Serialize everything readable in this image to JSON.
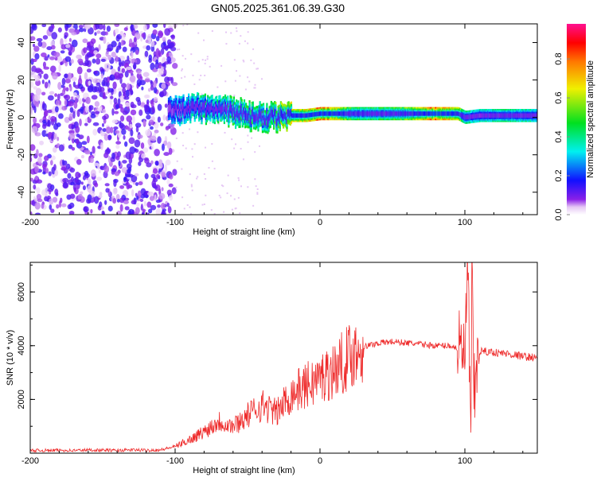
{
  "title": "GN05.2025.361.06.39.G30",
  "chart_data": [
    {
      "type": "heatmap",
      "xlabel": "Height of straight line (km)",
      "ylabel": "Frequency (Hz)",
      "xlim": [
        -200,
        150
      ],
      "ylim": [
        -52,
        50
      ],
      "xticks": [
        -200,
        -100,
        0,
        100
      ],
      "xtick_labels": [
        "-200",
        "-100",
        "0",
        "100"
      ],
      "yticks": [
        -40,
        -20,
        0,
        20,
        40
      ],
      "ytick_labels": [
        "-40",
        "-20",
        "0",
        "20",
        "40"
      ],
      "colorbar": {
        "label": "Normalized spectral amplitude",
        "range": [
          0,
          1
        ],
        "ticks": [
          0.0,
          0.2,
          0.4,
          0.6,
          0.8
        ],
        "tick_labels": [
          "0.0",
          "0.2",
          "0.4",
          "0.6",
          "0.8"
        ],
        "colormap": "rainbow (white-violet-blue-cyan-green-yellow-red-magenta)"
      },
      "ridge": {
        "x": [
          -105,
          -90,
          -80,
          -70,
          -60,
          -50,
          -40,
          -30,
          -20,
          -10,
          0,
          10,
          20,
          40,
          60,
          80,
          95,
          100,
          110,
          130,
          150
        ],
        "freq": [
          4,
          4,
          5,
          4,
          3,
          1,
          0,
          0,
          1,
          1,
          2,
          2,
          2,
          2,
          2,
          2,
          2,
          0,
          1,
          1,
          1
        ],
        "peak_amplitude": [
          0.3,
          0.4,
          0.45,
          0.45,
          0.5,
          0.55,
          0.5,
          0.6,
          0.7,
          0.75,
          0.85,
          0.8,
          0.55,
          0.5,
          0.6,
          0.9,
          0.7,
          0.45,
          0.4,
          0.45,
          0.4
        ]
      },
      "noise_region": {
        "x_range": [
          -200,
          -100
        ],
        "amplitude": 0.15
      }
    },
    {
      "type": "line",
      "xlabel": "Height of straight line (km)",
      "ylabel": "SNR (10 * v/v)",
      "xlim": [
        -200,
        150
      ],
      "ylim": [
        0,
        7100
      ],
      "xticks": [
        -200,
        -100,
        0,
        100
      ],
      "xtick_labels": [
        "-200",
        "-100",
        "0",
        "100"
      ],
      "yticks": [
        2000,
        4000,
        6000
      ],
      "ytick_labels": [
        "2000",
        "4000",
        "6000"
      ],
      "color": "#ee2a2a",
      "series": [
        {
          "name": "SNR",
          "x": [
            -200,
            -190,
            -180,
            -170,
            -160,
            -150,
            -140,
            -130,
            -120,
            -110,
            -100,
            -90,
            -80,
            -70,
            -60,
            -50,
            -40,
            -30,
            -20,
            -10,
            0,
            10,
            20,
            30,
            40,
            50,
            60,
            70,
            80,
            90,
            95,
            100,
            102,
            104,
            105,
            106,
            110,
            120,
            130,
            140,
            150
          ],
          "values": [
            100,
            100,
            110,
            100,
            120,
            110,
            100,
            120,
            110,
            120,
            250,
            500,
            800,
            1200,
            1000,
            1400,
            1800,
            1500,
            2200,
            2500,
            2800,
            3100,
            3600,
            3950,
            4100,
            4150,
            4100,
            4050,
            4000,
            4000,
            3900,
            3600,
            6900,
            700,
            6900,
            2000,
            3800,
            3750,
            3700,
            3600,
            3550
          ]
        }
      ]
    }
  ]
}
